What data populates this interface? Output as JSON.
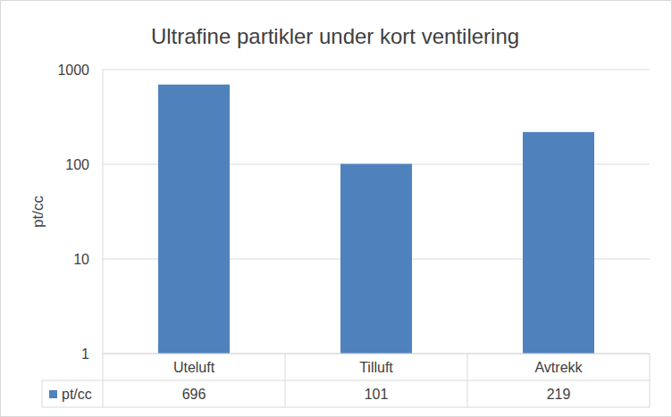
{
  "chart_data": {
    "type": "bar",
    "title": "Ultrafine partikler under kort ventilering",
    "ylabel": "pt/cc",
    "categories": [
      "Uteluft",
      "Tilluft",
      "Avtrekk"
    ],
    "series": [
      {
        "name": "pt/cc",
        "color": "#4f81bd",
        "values": [
          696,
          101,
          219
        ]
      }
    ],
    "ylim": [
      1,
      1000
    ],
    "yticks": [
      1,
      10,
      100,
      1000
    ],
    "log": "y",
    "grid": true,
    "data_labels": true
  }
}
